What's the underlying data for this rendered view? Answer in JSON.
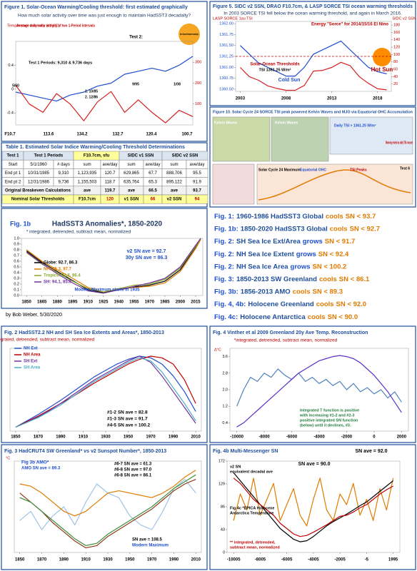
{
  "chart_data": [
    {
      "type": "line",
      "title": "Figure 1. Solar-Ocean Warming/Cooling threshold: first estimated graphically",
      "subtitle": "How much solar activity over time was just enough to maintain HadSST3 decadally?",
      "ylabel": "Temperature anomaly (deg C)",
      "categories": [
        null,
        null,
        null,
        null,
        null,
        null,
        null,
        null,
        null,
        null,
        null,
        null,
        null,
        null
      ],
      "ylim": [
        -0.6,
        0.8
      ],
      "yticks": [
        -0.4,
        0,
        0.4
      ],
      "y2lim": [
        0,
        400
      ],
      "y2ticks": [
        100,
        200,
        300
      ],
      "series": [
        {
          "color": "#1f4fcf",
          "values": [
            -0.05,
            -0.1,
            -0.15,
            -0.2,
            -0.1,
            -0.05,
            0.05,
            0.1,
            0.25,
            0.3,
            0.35,
            0.3,
            0.4,
            0.55
          ]
        },
        {
          "color": "#d62020",
          "axis": "y2",
          "values": [
            190,
            100,
            60,
            150,
            100,
            20,
            110,
            160,
            60,
            120,
            60,
            10,
            70,
            40
          ]
        }
      ],
      "annotations": [
        "Average daily solar activity of two 1-Period intervals",
        "Test 1 Periods: 9,310 & 9,736 days",
        "Test 2:",
        "Sun Ocean Breakeven analysis",
        "5/60",
        "1. 10/85",
        "2. 12/86",
        "9/95",
        "1/08",
        "F10.7",
        "113.6",
        "134.2",
        "132.7",
        "120.4",
        "100.7"
      ]
    },
    {
      "type": "line",
      "title": "Figure 5. SIDC v2 SSN, DRAO F10.7cm, & LASP SORCE TSI ocean warming thresholds",
      "subtitle": "In 2003 SORCE TSI fell below the ocean warming threshold, and again in March 2016.",
      "ylabel": "LASP SORCE 1au TSI",
      "y2label": "SIDC v2 SSN",
      "x": [
        2003,
        2004,
        2005,
        2006,
        2007,
        2008,
        2009,
        2010,
        2011,
        2012,
        2013,
        2014,
        2015,
        2016,
        2017,
        2018,
        2019
      ],
      "xlim": [
        2002.5,
        2019.5
      ],
      "xticks": [
        2003,
        2008,
        2013,
        2018
      ],
      "ylim": [
        1360.45,
        1362.05
      ],
      "yticks": [
        {
          "value": 1360.5,
          "label": "1360.50"
        },
        1360.75,
        {
          "value": 1361,
          "label": "1361.00"
        },
        1361.25,
        {
          "value": 1361.5,
          "label": "1361.50"
        },
        1361.75,
        {
          "value": 1362,
          "label": "1362.00"
        }
      ],
      "y2lim": [
        0,
        190
      ],
      "y2ticks": [
        20,
        40,
        60,
        80,
        100,
        120,
        140,
        160,
        180
      ],
      "threshold": 1361.25,
      "series": [
        {
          "color": "#1f4fcf",
          "values": [
            1361.5,
            1361.3,
            1361.1,
            1361.0,
            1360.9,
            1360.8,
            1360.8,
            1361.0,
            1361.3,
            1361.4,
            1361.5,
            1361.6,
            1361.4,
            1361.2,
            1361.0,
            1360.9,
            1360.85
          ]
        },
        {
          "color": "#d62020",
          "axis": "y2",
          "values": [
            65,
            40,
            30,
            15,
            8,
            3,
            3,
            16,
            55,
            57,
            65,
            79,
            70,
            40,
            22,
            7,
            4
          ]
        }
      ],
      "annotations": [
        "Energy \"Sorce\" for 2014/15/16 El Nino",
        "Hot Sun",
        "Cold Sun",
        "Solar-Ocean Thresholds",
        "TSI 1361.25 W/m²"
      ]
    },
    {
      "type": "line",
      "label": "Fig. 1b",
      "title": "HadSST3 Anomalies*, 1850-2020",
      "subtitle": "* integrated, detrended, subtract mean, normalized",
      "x": [
        1850,
        1865,
        1880,
        1895,
        1910,
        1925,
        1940,
        1955,
        1970,
        1985,
        2000,
        2015,
        2020
      ],
      "xlim": [
        1845,
        2022
      ],
      "xticks": [
        1850,
        1865,
        1880,
        1895,
        1910,
        1925,
        1940,
        1955,
        1970,
        1985,
        2000,
        2015
      ],
      "ylim": [
        0,
        1
      ],
      "yticks": [
        {
          "value": 0,
          "label": "0.0"
        },
        0.1,
        0.2,
        0.3,
        0.4,
        0.5,
        0.6,
        0.7,
        0.8,
        0.9,
        {
          "value": 1,
          "label": "1.0"
        }
      ],
      "legend": true,
      "series": [
        {
          "name": "Globe: 92.7, 86.3",
          "color": "#000000",
          "values": [
            0.78,
            0.58,
            0.42,
            0.26,
            0.1,
            0.05,
            0.1,
            0.15,
            0.18,
            0.25,
            0.45,
            0.85,
            1.0
          ]
        },
        {
          "name": "NH: 95.3, 87.7",
          "color": "#e07b00",
          "values": [
            0.8,
            0.6,
            0.45,
            0.3,
            0.14,
            0.06,
            0.12,
            0.14,
            0.16,
            0.22,
            0.42,
            0.82,
            0.98
          ]
        },
        {
          "name": "Tropics: 92.8, 86.4",
          "color": "#8aa82a",
          "values": [
            0.75,
            0.55,
            0.4,
            0.25,
            0.12,
            0.06,
            0.12,
            0.18,
            0.2,
            0.28,
            0.48,
            0.86,
            1.0
          ]
        },
        {
          "name": "SH: 94.1, 85.8",
          "color": "#7030a0",
          "values": [
            0.76,
            0.56,
            0.38,
            0.22,
            0.08,
            0.04,
            0.1,
            0.16,
            0.22,
            0.3,
            0.5,
            0.88,
            1.0
          ]
        }
      ],
      "annotations": [
        "v2 SN ave = 92.7",
        "30y SN ave = 86.3",
        "Modern Maximum starts in  1935"
      ]
    },
    {
      "type": "line",
      "title": "Fig. 2  HadSST2.2 NH and SH Sea Ice Extents and Areas*, 1850-2013",
      "subtitle": "*integrated, detrended, subtract mean, normalized",
      "x": [
        1850,
        1860,
        1870,
        1880,
        1890,
        1900,
        1910,
        1920,
        1930,
        1940,
        1950,
        1960,
        1970,
        1980,
        1990,
        2000,
        2010
      ],
      "xlim": [
        1845,
        2015
      ],
      "xticks": [
        1850,
        1870,
        1890,
        1910,
        1930,
        1950,
        1970,
        1990,
        2010
      ],
      "ylim": [
        -0.05,
        1.0
      ],
      "legend": true,
      "series": [
        {
          "name": "NH Ext",
          "color": "#1f4fcf",
          "values": [
            0,
            0.08,
            0.16,
            0.25,
            0.34,
            0.44,
            0.54,
            0.64,
            0.72,
            0.8,
            0.86,
            0.9,
            0.88,
            0.8,
            0.65,
            0.45,
            0.2
          ]
        },
        {
          "name": "NH Area",
          "color": "#c00000",
          "values": [
            0,
            0.07,
            0.14,
            0.22,
            0.3,
            0.38,
            0.47,
            0.56,
            0.64,
            0.72,
            0.8,
            0.86,
            0.9,
            0.88,
            0.8,
            0.6,
            0.3
          ]
        },
        {
          "name": "SH Ext",
          "color": "#7030a0",
          "values": [
            0,
            0.06,
            0.13,
            0.21,
            0.3,
            0.4,
            0.5,
            0.6,
            0.68,
            0.76,
            0.84,
            0.9,
            0.82,
            0.65,
            0.45,
            0.25,
            0.05
          ]
        },
        {
          "name": "SH Area",
          "color": "#4bacc6",
          "values": [
            0,
            0.06,
            0.12,
            0.2,
            0.28,
            0.38,
            0.48,
            0.58,
            0.66,
            0.74,
            0.82,
            0.88,
            0.84,
            0.7,
            0.5,
            0.3,
            0.08
          ]
        }
      ],
      "annotations": [
        "#1-2 SN ave = 82.8",
        "#1-3 SN ave = 91.7",
        "#4-5 SN ave = 100.2"
      ]
    },
    {
      "type": "line",
      "title": "Fig. 4   Vinther et al 2009 Greenland 20y Ave Temp. Reconstruction",
      "subtitle": "*integrated, detrended, subtract mean, normalized",
      "ylabel": "Δ°C",
      "x": [
        -10000,
        -9500,
        -9000,
        -8500,
        -8000,
        -7500,
        -7000,
        -6500,
        -6000,
        -5500,
        -5000,
        -4500,
        -4000,
        -3500,
        -3000,
        -2500,
        -2000,
        -1500,
        -1000,
        -500,
        0,
        500,
        1000,
        1500,
        2000
      ],
      "xlim": [
        -10500,
        2500
      ],
      "xticks": [
        -10000,
        -8000,
        -6000,
        -4000,
        -2000,
        0,
        2000
      ],
      "ylim": [
        0,
        4
      ],
      "yticks": [
        0.4,
        1.2,
        {
          "value": 2,
          "label": "2.0"
        },
        2.8,
        3.6
      ],
      "series": [
        {
          "color": "#4f81bd",
          "values": [
            1.2,
            2.0,
            2.6,
            2.4,
            2.8,
            2.6,
            3.0,
            2.7,
            2.5,
            2.8,
            2.4,
            2.6,
            2.3,
            2.5,
            2.2,
            2.4,
            2.0,
            2.3,
            1.9,
            2.1,
            1.8,
            2.0,
            1.6,
            1.9,
            1.4
          ]
        },
        {
          "color": "#5b2fc9",
          "values": [
            0.2,
            0.4,
            0.7,
            1.0,
            1.3,
            1.6,
            1.9,
            2.2,
            2.5,
            2.8,
            3.0,
            3.2,
            3.4,
            3.5,
            3.6,
            3.65,
            3.6,
            3.5,
            3.3,
            3.0,
            2.7,
            2.3,
            1.9,
            1.4,
            0.9
          ]
        }
      ],
      "annotations": [
        "Integrated T function is positive",
        "with increasing #1-2 and #2-3",
        "positive integrated SN function",
        "(below) until it declines, #3."
      ]
    },
    {
      "type": "line",
      "title": "Fig. 3  HadCRUT4 SW Greenland* vs v2 Sunspot Number*, 1850-2013",
      "ylabel": "°C",
      "x": [
        1850,
        1860,
        1870,
        1880,
        1890,
        1900,
        1910,
        1920,
        1930,
        1940,
        1950,
        1960,
        1970,
        1980,
        1990,
        2000,
        2010
      ],
      "xlim": [
        1845,
        2015
      ],
      "xticks": [
        1850,
        1870,
        1890,
        1910,
        1930,
        1950,
        1970,
        1990,
        2010
      ],
      "ylim": [
        -1,
        1
      ],
      "series": [
        {
          "color": "#9dc3e6",
          "values": [
            -0.3,
            -0.1,
            -0.5,
            -0.2,
            0,
            -0.4,
            0.1,
            0.5,
            0.3,
            0.2,
            -0.2,
            -0.4,
            -0.5,
            -0.1,
            0.4,
            0.6,
            0.3
          ]
        },
        {
          "color": "#e07b00",
          "values": [
            0.5,
            0.45,
            0.3,
            0.1,
            -0.1,
            -0.2,
            -0.1,
            0.1,
            0.3,
            0.35,
            0.3,
            0.25,
            0.2,
            0.3,
            0.45,
            0.65,
            0.8
          ]
        },
        {
          "color": "#8b3a1a",
          "values": [
            0.3,
            0.1,
            -0.1,
            -0.35,
            -0.55,
            -0.75,
            -0.9,
            -0.85,
            -0.65,
            -0.5,
            -0.35,
            -0.2,
            -0.05,
            0.15,
            0.35,
            0.5,
            0.6
          ]
        },
        {
          "color": "#3a8f3a",
          "values": [
            0.2,
            0.1,
            -0.1,
            -0.3,
            -0.5,
            -0.7,
            -0.85,
            -0.8,
            -0.6,
            -0.45,
            -0.3,
            -0.15,
            0,
            0.2,
            0.4,
            0.55,
            0.7
          ]
        }
      ],
      "annotations": [
        "Fig 3b AMO*",
        "AMO SN ave = 89.3",
        "#6-7 SN ave = 61.3",
        "#6-8 SN ave = 97.0",
        "#6-8 SN ave = 86.1",
        "SN ave = 108.5",
        "Modern Maximum"
      ]
    },
    {
      "type": "line",
      "title": "Fig. 4b  Multi-Messenger SN",
      "x": [
        -10005,
        -9505,
        -9005,
        -8505,
        -8005,
        -7505,
        -7005,
        -6505,
        -6005,
        -5505,
        -5005,
        -4505,
        -4005,
        -3505,
        -3005,
        -2505,
        -2005,
        -1505,
        -1005,
        -505,
        -5,
        495,
        995,
        1495,
        1995
      ],
      "xlim": [
        -10500,
        2500
      ],
      "xticks": [
        -10005,
        -8005,
        -6005,
        -4005,
        -2005,
        -5,
        1995
      ],
      "ylim": [
        0,
        172
      ],
      "yticks": [
        0,
        43,
        86,
        129,
        172
      ],
      "series": [
        {
          "color": "#e07b00",
          "values": [
            60,
            110,
            80,
            140,
            70,
            100,
            130,
            60,
            90,
            120,
            70,
            50,
            100,
            140,
            80,
            60,
            110,
            90,
            130,
            70,
            100,
            60,
            120,
            80,
            140
          ]
        },
        {
          "color": "#000000",
          "values": [
            150,
            135,
            120,
            105,
            90,
            75,
            60,
            45,
            35,
            25,
            20,
            22,
            30,
            40,
            50,
            58,
            65,
            72,
            80,
            88,
            95,
            105,
            115,
            125,
            135
          ]
        },
        {
          "color": "#c00000",
          "values": [
            140,
            130,
            115,
            100,
            90,
            80,
            70,
            55,
            45,
            35,
            30,
            32,
            38,
            45,
            52,
            60,
            68,
            70,
            76,
            84,
            90,
            100,
            110,
            118,
            125
          ]
        }
      ],
      "annotations": [
        "SN ave = 92.0",
        "SN ave = 90.0",
        "v2 SN",
        "equivalent decadal ave",
        "Fig 4c *EPICA Holocene",
        "Antarctica Temperature",
        "** integrated, detrended,",
        "subtract mean, normalized"
      ]
    }
  ],
  "fig10": {
    "title": "Figure 10. Solar Cycle 24 SORCE TSI peak powered Kelvin Waves and MJO via Equatorial OHC Accumulation",
    "labels": [
      "Kelvin Waves",
      "Kelvin Waves",
      "Daily TSI > 1361.25 W/m²",
      "Warming ended as daily TSI crossed",
      "Solar Cycle 24 Maximum",
      "Equatorial OHC",
      "TSI Peaks",
      "Test 6"
    ]
  },
  "table": {
    "title": "Table 1.  Estimated Solar Indice Warming/Cooling Threshold Determinations",
    "header": [
      "Test 1",
      "Test 1 Periods",
      "F10.7cm, sfu",
      "SIDC v1 SSN",
      "SIDC v2 SSN"
    ],
    "subheader": [
      "Start",
      "5/1/1960",
      "# days",
      "sum",
      "ave/day",
      "sum",
      "ave/day",
      "sum",
      "ave/day"
    ],
    "rows": [
      [
        "End pt 1",
        "10/31/1985",
        "9,310",
        "1,123,935",
        "120.7",
        "629,865",
        "67.7",
        "888,706",
        "95.5"
      ],
      [
        "End pt 2",
        "12/31/1986",
        "9,736",
        "1,155,503",
        "118.7",
        "635,764",
        "65.3",
        "895,122",
        "91.9"
      ]
    ],
    "summary": [
      [
        "Original Breakeven Calculations",
        "ave",
        "119.7",
        "ave",
        "66.5",
        "ave",
        "93.7"
      ],
      [
        "Nominal Solar Thresholds",
        "F10.7cm",
        "120",
        "v1 SSN",
        "66",
        "v2 SSN",
        "94"
      ]
    ]
  },
  "findings": [
    [
      "Fig. 1:",
      "1960-1986 HadSST3 Global",
      "cools",
      "SN < 93.7"
    ],
    [
      "Fig. 1b:",
      "1850-2020 HadSST3 Global",
      "cools",
      "SN < 92.7"
    ],
    [
      "Fig. 2:",
      "SH Sea Ice Ext/Area",
      "grows",
      "SN < 91.7"
    ],
    [
      "Fig. 2:",
      "NH Sea Ice Extent",
      "grows",
      "SN < 92.4"
    ],
    [
      "Fig. 2:",
      "NH Sea Ice Area",
      "grows",
      "SN < 100.2"
    ],
    [
      "Fig. 3:",
      "1850-2013 SW Greenland",
      "cools",
      "SN < 86.1"
    ],
    [
      "Fig. 3b:",
      "1856-2013 AMO",
      "cools",
      "SN < 89.3"
    ],
    [
      "Fig. 4, 4b:",
      "Holocene Greenland",
      "cools",
      "SN < 92.0"
    ],
    [
      "Fig. 4c:",
      "Holocene Antarctica",
      "cools",
      "SN < 90.0"
    ]
  ],
  "author": "by Bob Weber, 5/30/2020"
}
